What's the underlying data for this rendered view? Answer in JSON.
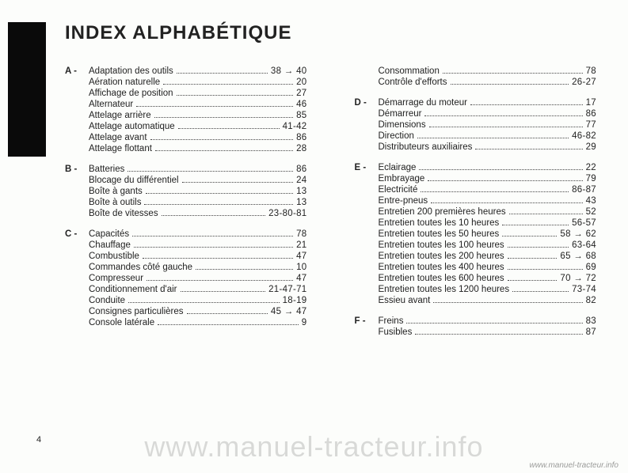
{
  "title": "INDEX ALPHABÉTIQUE",
  "page_number": "4",
  "watermark": "www.manuel-tracteur.info",
  "watermark_small": "www.manuel-tracteur.info",
  "left": [
    {
      "letter": "A",
      "items": [
        {
          "label": "Adaptation des outils",
          "page": "38 → 40"
        },
        {
          "label": "Aération naturelle",
          "page": "20"
        },
        {
          "label": "Affichage de position",
          "page": "27"
        },
        {
          "label": "Alternateur",
          "page": "46"
        },
        {
          "label": "Attelage arrière",
          "page": "85"
        },
        {
          "label": "Attelage automatique",
          "page": "41-42"
        },
        {
          "label": "Attelage avant",
          "page": "86"
        },
        {
          "label": "Attelage flottant",
          "page": "28"
        }
      ]
    },
    {
      "letter": "B",
      "items": [
        {
          "label": "Batteries",
          "page": "86"
        },
        {
          "label": "Blocage du différentiel",
          "page": "24"
        },
        {
          "label": "Boîte à gants",
          "page": "13"
        },
        {
          "label": "Boîte à outils",
          "page": "13"
        },
        {
          "label": "Boîte de vitesses",
          "page": "23-80-81"
        }
      ]
    },
    {
      "letter": "C",
      "items": [
        {
          "label": "Capacités",
          "page": "78"
        },
        {
          "label": "Chauffage",
          "page": "21"
        },
        {
          "label": "Combustible",
          "page": "47"
        },
        {
          "label": "Commandes côté gauche",
          "page": "10"
        },
        {
          "label": "Compresseur",
          "page": "47"
        },
        {
          "label": "Conditionnement d'air",
          "page": "21-47-71"
        },
        {
          "label": "Conduite",
          "page": "18-19"
        },
        {
          "label": "Consignes particulières",
          "page": "45 → 47"
        },
        {
          "label": "Console latérale",
          "page": "9"
        }
      ]
    }
  ],
  "right": [
    {
      "letter": "",
      "items": [
        {
          "label": "Consommation",
          "page": "78"
        },
        {
          "label": "Contrôle d'efforts",
          "page": "26-27"
        }
      ]
    },
    {
      "letter": "D",
      "items": [
        {
          "label": "Démarrage du moteur",
          "page": "17"
        },
        {
          "label": "Démarreur",
          "page": "86"
        },
        {
          "label": "Dimensions",
          "page": "77"
        },
        {
          "label": "Direction",
          "page": "46-82"
        },
        {
          "label": "Distributeurs auxiliaires",
          "page": "29"
        }
      ]
    },
    {
      "letter": "E",
      "items": [
        {
          "label": "Eclairage",
          "page": "22"
        },
        {
          "label": "Embrayage",
          "page": "79"
        },
        {
          "label": "Electricité",
          "page": "86-87"
        },
        {
          "label": "Entre-pneus",
          "page": "43"
        },
        {
          "label": "Entretien 200 premières heures",
          "page": "52"
        },
        {
          "label": "Entretien toutes les   10 heures",
          "page": "56-57"
        },
        {
          "label": "Entretien toutes les   50 heures",
          "page": "58 → 62"
        },
        {
          "label": "Entretien toutes les 100 heures",
          "page": "63-64"
        },
        {
          "label": "Entretien toutes les 200 heures",
          "page": "65 → 68"
        },
        {
          "label": "Entretien toutes les 400 heures",
          "page": "69"
        },
        {
          "label": "Entretien toutes les 600 heures",
          "page": "70 → 72"
        },
        {
          "label": "Entretien toutes les 1200 heures",
          "page": "73-74"
        },
        {
          "label": "Essieu avant",
          "page": "82"
        }
      ]
    },
    {
      "letter": "F",
      "items": [
        {
          "label": "Freins",
          "page": "83"
        },
        {
          "label": "Fusibles",
          "page": "87"
        }
      ]
    }
  ]
}
